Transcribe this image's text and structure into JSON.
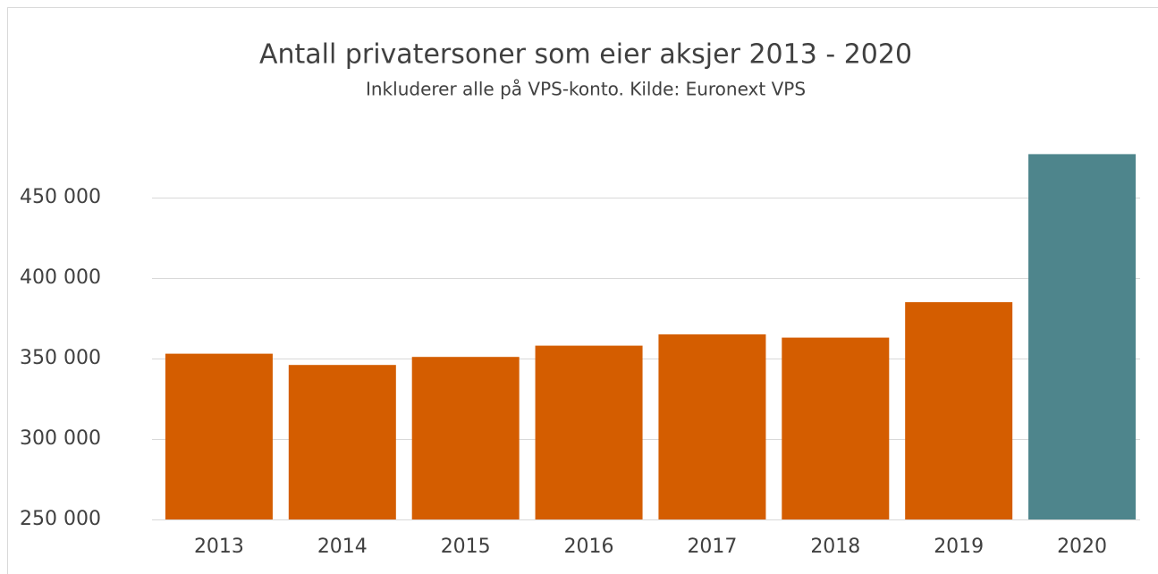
{
  "chart_data": {
    "type": "bar",
    "title": "Antall privatersoner som eier aksjer 2013 - 2020",
    "subtitle": "Inkluderer alle på VPS-konto. Kilde: Euronext VPS",
    "categories": [
      "2013",
      "2014",
      "2015",
      "2016",
      "2017",
      "2018",
      "2019",
      "2020"
    ],
    "values": [
      353000,
      346000,
      351000,
      358000,
      365000,
      363000,
      385000,
      477000
    ],
    "colors": [
      "#d45d00",
      "#d45d00",
      "#d45d00",
      "#d45d00",
      "#d45d00",
      "#d45d00",
      "#d45d00",
      "#4e858c"
    ],
    "ylim": [
      250000,
      480000
    ],
    "yticks": [
      {
        "value": 250000,
        "label": "250 000"
      },
      {
        "value": 300000,
        "label": "300 000"
      },
      {
        "value": 350000,
        "label": "350 000"
      },
      {
        "value": 400000,
        "label": "400 000"
      },
      {
        "value": 450000,
        "label": "450 000"
      }
    ],
    "grid": true
  }
}
